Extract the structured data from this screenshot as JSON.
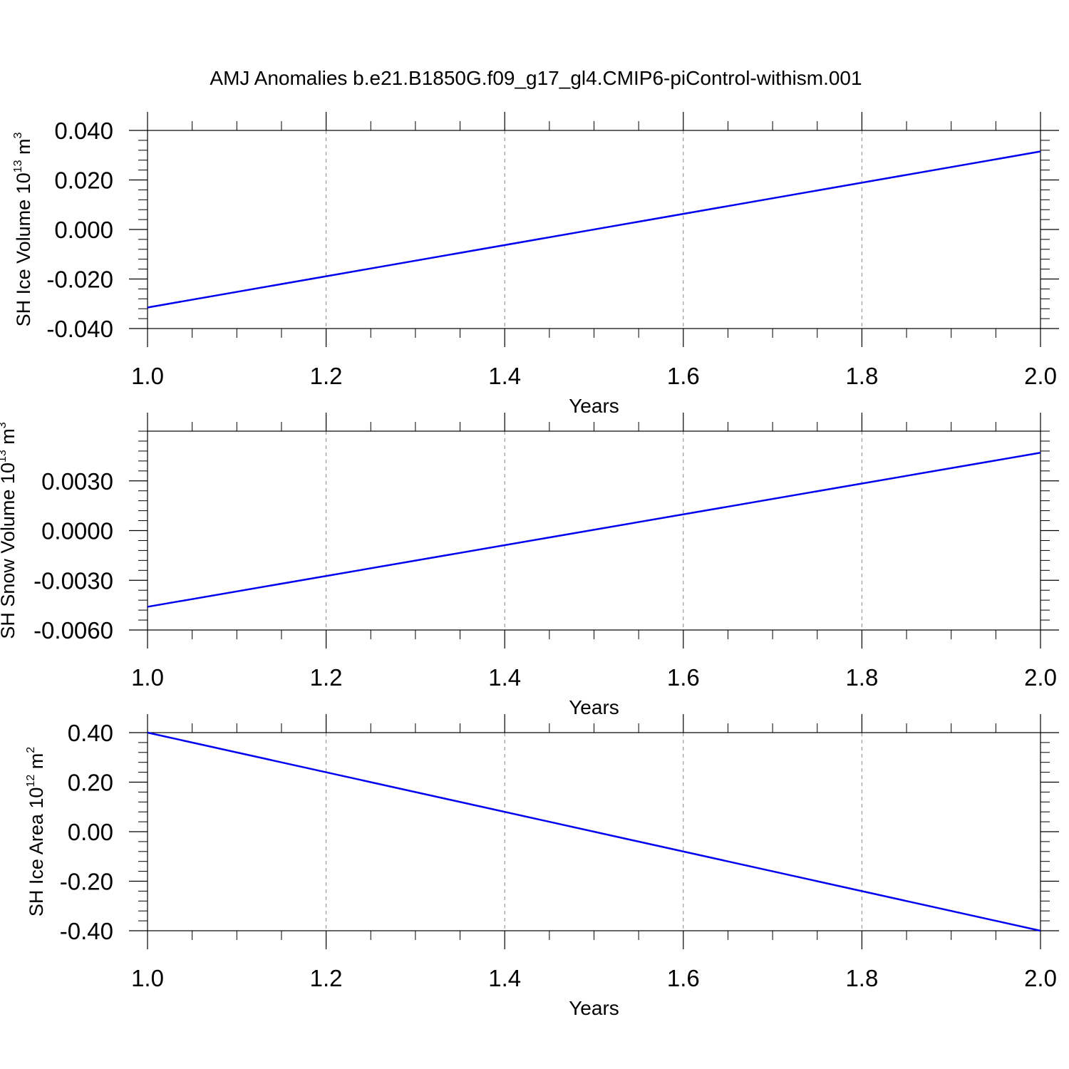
{
  "figure": {
    "title": "AMJ Anomalies b.e21.B1850G.f09_g17_gl4.CMIP6-piControl-withism.001"
  },
  "chart_data": [
    {
      "type": "line",
      "xlabel": "Years",
      "ylabel": {
        "text": "SH Ice Volume 10",
        "exp": "13",
        "unit": " m",
        "unit_exp": "3"
      },
      "xlim": [
        1.0,
        2.0
      ],
      "ylim": [
        -0.04,
        0.04
      ],
      "x_ticks": [
        "1.0",
        "1.2",
        "1.4",
        "1.6",
        "1.8",
        "2.0"
      ],
      "y_ticks": [
        "-0.040",
        "-0.020",
        "0.000",
        "0.020",
        "0.040"
      ],
      "y_tick_values": [
        -0.04,
        -0.02,
        0.0,
        0.02,
        0.04
      ],
      "grid": "vertical dashed",
      "series": [
        {
          "x": [
            1.0,
            2.0
          ],
          "y": [
            -0.0315,
            0.0315
          ],
          "color": "#0000ee"
        }
      ]
    },
    {
      "type": "line",
      "xlabel": "Years",
      "ylabel": {
        "text": "SH Snow Volume 10",
        "exp": "13",
        "unit": " m",
        "unit_exp": "3"
      },
      "xlim": [
        1.0,
        2.0
      ],
      "ylim": [
        -0.006,
        0.006
      ],
      "x_ticks": [
        "1.0",
        "1.2",
        "1.4",
        "1.6",
        "1.8",
        "2.0"
      ],
      "y_ticks": [
        "-0.0060",
        "-0.0030",
        "0.0000",
        "0.0030"
      ],
      "y_tick_values": [
        -0.006,
        -0.003,
        0.0,
        0.003
      ],
      "grid": "vertical dashed",
      "series": [
        {
          "x": [
            1.0,
            2.0
          ],
          "y": [
            -0.0046,
            0.0047
          ],
          "color": "#0000ee"
        }
      ]
    },
    {
      "type": "line",
      "xlabel": "Years",
      "ylabel": {
        "text": "SH Ice Area 10",
        "exp": "12",
        "unit": " m",
        "unit_exp": "2"
      },
      "xlim": [
        1.0,
        2.0
      ],
      "ylim": [
        -0.4,
        0.4
      ],
      "x_ticks": [
        "1.0",
        "1.2",
        "1.4",
        "1.6",
        "1.8",
        "2.0"
      ],
      "y_ticks": [
        "-0.40",
        "-0.20",
        "0.00",
        "0.20",
        "0.40"
      ],
      "y_tick_values": [
        -0.4,
        -0.2,
        0.0,
        0.2,
        0.4
      ],
      "grid": "vertical dashed",
      "series": [
        {
          "x": [
            1.0,
            2.0
          ],
          "y": [
            0.4,
            -0.4
          ],
          "color": "#0000ee"
        }
      ]
    }
  ]
}
